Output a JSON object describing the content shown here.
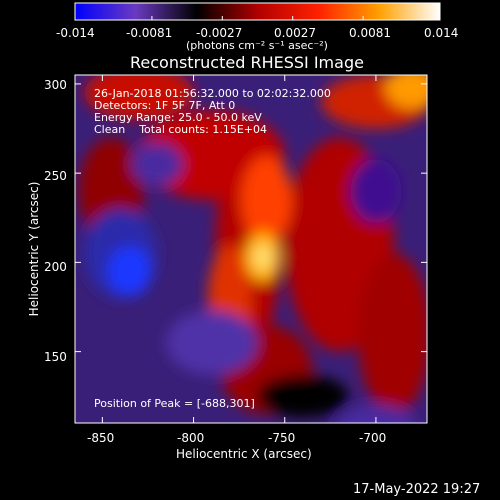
{
  "chart_data": {
    "type": "heatmap",
    "title": "Reconstructed RHESSI Image",
    "colorbar": {
      "ticks": [
        "-0.014",
        "-0.0081",
        "-0.0027",
        "0.0027",
        "0.0081",
        "0.014"
      ],
      "label": "(photons cm⁻² s⁻¹ asec⁻²)",
      "range": [
        -0.014,
        0.014
      ],
      "colormap": [
        "#0000ff",
        "#6a3ac0",
        "#000000",
        "#b00000",
        "#ff2000",
        "#ffa000",
        "#ffffff"
      ]
    },
    "xlabel": "Heliocentric X (arcsec)",
    "ylabel": "Heliocentric Y (arcsec)",
    "xlim": [
      -865,
      -672
    ],
    "ylim": [
      110,
      305
    ],
    "xticks": [
      "-850",
      "-800",
      "-750",
      "-700"
    ],
    "yticks": [
      "150",
      "200",
      "250",
      "300"
    ],
    "info_lines": [
      "26-Jan-2018 01:56:32.000 to 02:02:32.000",
      "Detectors: 1F 5F 7F, Att 0",
      "Energy Range: 25.0 - 50.0 keV",
      "Clean    Total counts: 1.15E+04"
    ],
    "peak_label": "Position of Peak = [-688,301]",
    "peak": [
      -688,
      301
    ],
    "timestamp": "17-May-2022 19:27"
  }
}
